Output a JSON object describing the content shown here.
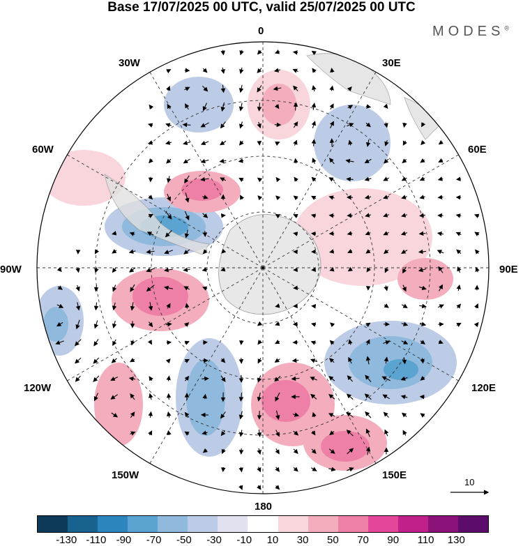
{
  "title": "Base 17/07/2025 00 UTC, valid 25/07/2025 00 UTC",
  "brand": "MODES",
  "brand_mark": "®",
  "longitude_labels": {
    "top": "0",
    "top_right": "30E",
    "right_upper": "60E",
    "right": "90E",
    "right_lower": "120E",
    "bottom_right": "150E",
    "bottom": "180",
    "bottom_left": "150W",
    "left_lower": "120W",
    "left": "90W",
    "left_upper": "60W",
    "top_left": "30W"
  },
  "reference_vector_label": "10",
  "colorbar": {
    "colors": [
      "#0e3a5a",
      "#17628f",
      "#2c85bd",
      "#5ba3d0",
      "#8fb9dd",
      "#bccbe6",
      "#e1e1ef",
      "#ffffff",
      "#f9d6dc",
      "#f4adbd",
      "#ee7fa6",
      "#e4479a",
      "#c0208a",
      "#8a1278",
      "#5c0d6b"
    ],
    "tick_labels": [
      "-130",
      "-110",
      "-90",
      "-70",
      "-50",
      "-30",
      "-10",
      "10",
      "30",
      "50",
      "70",
      "90",
      "110",
      "130"
    ]
  }
}
